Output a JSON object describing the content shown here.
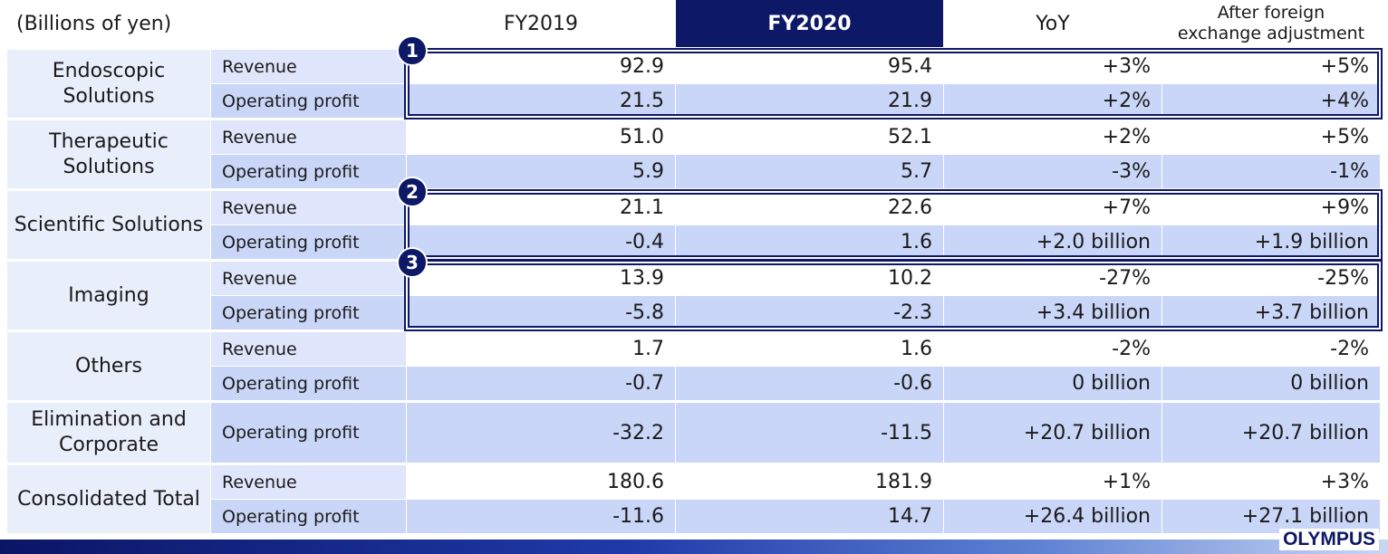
{
  "unit_label": "(Billions of yen)",
  "columns": {
    "fy2019": "FY2019",
    "fy2020": "FY2020",
    "yoy": "YoY",
    "fx_line1": "After foreign",
    "fx_line2": "exchange adjustment"
  },
  "badges": [
    "1",
    "2",
    "3"
  ],
  "segments": [
    {
      "name": "Endoscopic Solutions",
      "rows": [
        {
          "metric": "Revenue",
          "fy2019": "92.9",
          "fy2020": "95.4",
          "yoy": "+3%",
          "fx": "+5%"
        },
        {
          "metric": "Operating profit",
          "fy2019": "21.5",
          "fy2020": "21.9",
          "yoy": "+2%",
          "fx": "+4%"
        }
      ]
    },
    {
      "name": "Therapeutic Solutions",
      "rows": [
        {
          "metric": "Revenue",
          "fy2019": "51.0",
          "fy2020": "52.1",
          "yoy": "+2%",
          "fx": "+5%"
        },
        {
          "metric": "Operating profit",
          "fy2019": "5.9",
          "fy2020": "5.7",
          "yoy": "-3%",
          "fx": "-1%"
        }
      ]
    },
    {
      "name": "Scientific Solutions",
      "rows": [
        {
          "metric": "Revenue",
          "fy2019": "21.1",
          "fy2020": "22.6",
          "yoy": "+7%",
          "fx": "+9%"
        },
        {
          "metric": "Operating profit",
          "fy2019": "-0.4",
          "fy2020": "1.6",
          "yoy": "+2.0 billion",
          "fx": "+1.9 billion"
        }
      ]
    },
    {
      "name": "Imaging",
      "rows": [
        {
          "metric": "Revenue",
          "fy2019": "13.9",
          "fy2020": "10.2",
          "yoy": "-27%",
          "fx": "-25%"
        },
        {
          "metric": "Operating profit",
          "fy2019": "-5.8",
          "fy2020": "-2.3",
          "yoy": "+3.4 billion",
          "fx": "+3.7 billion"
        }
      ]
    },
    {
      "name": "Others",
      "rows": [
        {
          "metric": "Revenue",
          "fy2019": "1.7",
          "fy2020": "1.6",
          "yoy": "-2%",
          "fx": "-2%"
        },
        {
          "metric": "Operating profit",
          "fy2019": "-0.7",
          "fy2020": "-0.6",
          "yoy": "0 billion",
          "fx": "0 billion"
        }
      ]
    },
    {
      "name": "Elimination and Corporate",
      "rows": [
        {
          "metric": "Operating profit",
          "fy2019": "-32.2",
          "fy2020": "-11.5",
          "yoy": "+20.7 billion",
          "fx": "+20.7 billion"
        }
      ]
    },
    {
      "name": "Consolidated Total",
      "rows": [
        {
          "metric": "Revenue",
          "fy2019": "180.6",
          "fy2020": "181.9",
          "yoy": "+1%",
          "fx": "+3%"
        },
        {
          "metric": "Operating profit",
          "fy2019": "-11.6",
          "fy2020": "14.7",
          "yoy": "+26.4 billion",
          "fx": "+27.1 billion"
        }
      ]
    }
  ],
  "logo_text": "OLYMPUS",
  "colors": {
    "accent": "#0d1866",
    "row_light": "#dfe6fb",
    "row_mid": "#cad6f7",
    "segment_bg": "#e9eefb"
  }
}
